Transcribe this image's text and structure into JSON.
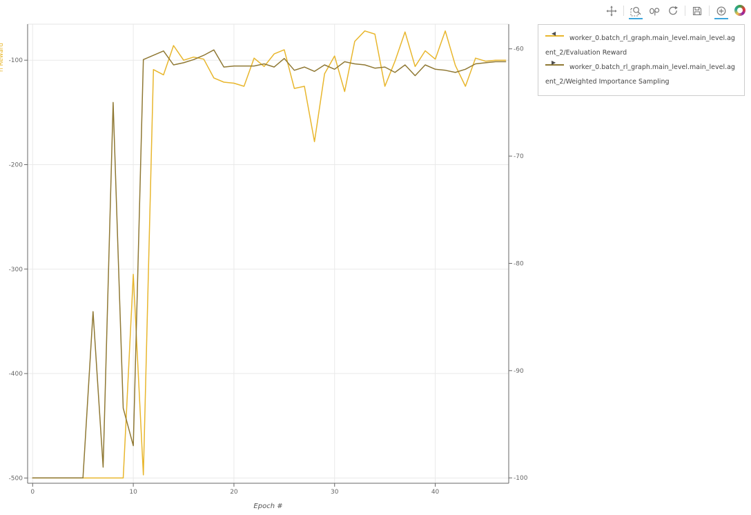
{
  "toolbar": {
    "icons": [
      {
        "name": "pan",
        "active": false
      },
      {
        "name": "box-zoom",
        "active": true
      },
      {
        "name": "wheel-zoom",
        "active": false
      },
      {
        "name": "reset",
        "active": false
      },
      {
        "name": "save",
        "active": false
      },
      {
        "name": "hover",
        "active": true
      },
      {
        "name": "bokeh-logo",
        "active": false
      }
    ]
  },
  "legend": {
    "items": [
      {
        "label": "worker_0.batch_rl_graph.main_level.main_level.agent_2/Evaluation Reward",
        "marker": "◀",
        "color": "#e8b62c"
      },
      {
        "label": "worker_0.batch_rl_graph.main_level.main_level.agent_2/Weighted Importance Sampling",
        "marker": "▶",
        "color": "#8f7833"
      }
    ]
  },
  "chart_data": {
    "type": "line",
    "title": "",
    "xlabel": "Epoch #",
    "grid": true,
    "legend_position": "top_right_outside",
    "x_ticks": [
      0,
      10,
      20,
      30,
      40
    ],
    "left_ticks": [
      -100,
      -200,
      -300,
      -400,
      -500
    ],
    "right_ticks": [
      -60,
      -70,
      -80,
      -90,
      -100
    ],
    "x_range": [
      -0.5,
      47.3
    ],
    "left_range": [
      -505,
      -65.5
    ],
    "right_range": [
      -100.5,
      -57.7
    ],
    "x": [
      0,
      1,
      2,
      3,
      4,
      5,
      6,
      7,
      8,
      9,
      10,
      11,
      12,
      13,
      14,
      15,
      16,
      17,
      18,
      19,
      20,
      21,
      22,
      23,
      24,
      25,
      26,
      27,
      28,
      29,
      30,
      31,
      32,
      33,
      34,
      35,
      36,
      37,
      38,
      39,
      40,
      41,
      42,
      43,
      44,
      45,
      46,
      47
    ],
    "series": [
      {
        "name": "worker_0.batch_rl_graph.main_level.main_level.agent_2/Evaluation Reward",
        "axis": "left",
        "color": "#e8b62c",
        "values": [
          -500,
          -500,
          -500,
          -500,
          -500,
          -500,
          -500,
          -500,
          -500,
          -500,
          -305,
          -497,
          -109,
          -114,
          -86,
          -100,
          -97,
          -99,
          -117,
          -121,
          -122,
          -125,
          -98,
          -106,
          -94,
          -90,
          -127,
          -125,
          -178,
          -113,
          -96,
          -130,
          -82,
          -72,
          -75,
          -125,
          -101,
          -73,
          -106,
          -91,
          -99,
          -72,
          -105,
          -125,
          -98,
          -101,
          -100,
          -100
        ]
      },
      {
        "name": "worker_0.batch_rl_graph.main_level.main_level.agent_2/Weighted Importance Sampling",
        "axis": "right",
        "color": "#8f7833",
        "values": [
          -100,
          -100,
          -100,
          -100,
          -100,
          -100,
          -84.5,
          -99,
          -65,
          -93.5,
          -97,
          -61,
          -60.6,
          -60.2,
          -61.5,
          -61.3,
          -61,
          -60.6,
          -60.1,
          -61.7,
          -61.6,
          -61.6,
          -61.6,
          -61.4,
          -61.7,
          -60.9,
          -62,
          -61.7,
          -62.1,
          -61.5,
          -61.9,
          -61.2,
          -61.4,
          -61.5,
          -61.8,
          -61.7,
          -62.2,
          -61.5,
          -62.5,
          -61.5,
          -61.9,
          -62,
          -62.2,
          -61.9,
          -61.4,
          -61.3,
          -61.2,
          -61.2
        ]
      }
    ]
  }
}
